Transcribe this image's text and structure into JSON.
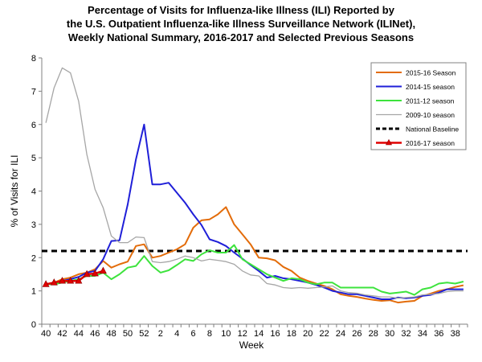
{
  "chart_data": {
    "type": "line",
    "title_lines": [
      "Percentage of Visits for Influenza-like Illness (ILI) Reported by",
      "the U.S. Outpatient Influenza-like Illness Surveillance Network (ILINet),",
      "Weekly National Summary, 2016-2017 and Selected Previous Seasons"
    ],
    "xlabel": "Week",
    "ylabel": "% of Visits for ILI",
    "ylim": [
      0,
      8
    ],
    "yticks": [
      "0",
      "1",
      "2",
      "3",
      "4",
      "5",
      "6",
      "7",
      "8"
    ],
    "x_tick_labels": [
      "40",
      "42",
      "44",
      "46",
      "48",
      "50",
      "52",
      "2",
      "4",
      "6",
      "8",
      "10",
      "12",
      "14",
      "16",
      "18",
      "20",
      "22",
      "24",
      "26",
      "28",
      "30",
      "32",
      "34",
      "36",
      "38"
    ],
    "baseline": {
      "name": "National Baseline",
      "value": 2.2,
      "color": "#000000"
    },
    "series": [
      {
        "name": "2015-16 Season",
        "color": "#E36C0A",
        "values": [
          1.2,
          1.25,
          1.35,
          1.4,
          1.5,
          1.55,
          1.65,
          1.9,
          1.7,
          1.8,
          1.88,
          2.35,
          2.4,
          2.0,
          2.05,
          2.15,
          2.25,
          2.4,
          2.9,
          3.12,
          3.15,
          3.3,
          3.52,
          3.0,
          2.7,
          2.4,
          2.0,
          1.98,
          1.92,
          1.72,
          1.6,
          1.4,
          1.3,
          1.22,
          1.15,
          1.05,
          0.9,
          0.85,
          0.82,
          0.77,
          0.73,
          0.7,
          0.72,
          0.65,
          0.68,
          0.7,
          0.85,
          0.92,
          1.0,
          1.05,
          1.12,
          1.17
        ]
      },
      {
        "name": "2014-15 season",
        "color": "#1F1FD8",
        "values": [
          1.2,
          1.25,
          1.3,
          1.35,
          1.42,
          1.55,
          1.6,
          1.95,
          2.5,
          2.52,
          3.6,
          4.95,
          6.0,
          4.2,
          4.2,
          4.25,
          3.95,
          3.65,
          3.3,
          2.98,
          2.55,
          2.47,
          2.35,
          2.15,
          1.97,
          1.78,
          1.6,
          1.4,
          1.45,
          1.38,
          1.35,
          1.3,
          1.25,
          1.18,
          1.1,
          1.0,
          0.95,
          0.9,
          0.9,
          0.85,
          0.8,
          0.75,
          0.75,
          0.8,
          0.78,
          0.8,
          0.85,
          0.88,
          0.95,
          1.05,
          1.05,
          1.05
        ]
      },
      {
        "name": "2011-12 season",
        "color": "#3DE33D",
        "values": [
          1.2,
          1.2,
          1.25,
          1.3,
          1.35,
          1.45,
          1.45,
          1.55,
          1.35,
          1.5,
          1.7,
          1.75,
          2.05,
          1.75,
          1.55,
          1.62,
          1.78,
          1.95,
          1.9,
          2.1,
          2.22,
          2.15,
          2.15,
          2.38,
          1.95,
          1.8,
          1.65,
          1.5,
          1.4,
          1.3,
          1.38,
          1.35,
          1.25,
          1.2,
          1.25,
          1.25,
          1.1,
          1.1,
          1.1,
          1.1,
          1.1,
          0.98,
          0.92,
          0.95,
          0.98,
          0.88,
          1.05,
          1.1,
          1.22,
          1.25,
          1.22,
          1.28
        ]
      },
      {
        "name": "2009-10 season",
        "color": "#A6A6A6",
        "values": [
          6.05,
          7.1,
          7.7,
          7.55,
          6.7,
          5.1,
          4.05,
          3.5,
          2.65,
          2.45,
          2.45,
          2.62,
          2.6,
          1.88,
          1.85,
          1.88,
          1.95,
          2.05,
          2.0,
          1.9,
          1.95,
          1.92,
          1.88,
          1.8,
          1.6,
          1.48,
          1.45,
          1.22,
          1.18,
          1.1,
          1.08,
          1.1,
          1.08,
          1.1,
          1.12,
          1.15,
          1.0,
          0.95,
          0.93,
          0.88,
          0.85,
          0.82,
          0.82,
          0.78,
          0.8,
          0.82,
          0.88,
          0.9,
          0.92,
          0.98,
          1.0,
          1.0
        ]
      },
      {
        "name": "2016-17 season",
        "color": "#E00000",
        "marker": "triangle",
        "values": [
          1.2,
          1.25,
          1.3,
          1.3,
          1.3,
          1.5,
          1.52,
          1.6
        ]
      }
    ],
    "legend_order": [
      "2015-16 Season",
      "2014-15 season",
      "2011-12 season",
      "2009-10 season",
      "National Baseline",
      "2016-17 season"
    ],
    "legend_position": "top-right",
    "grid": false
  }
}
